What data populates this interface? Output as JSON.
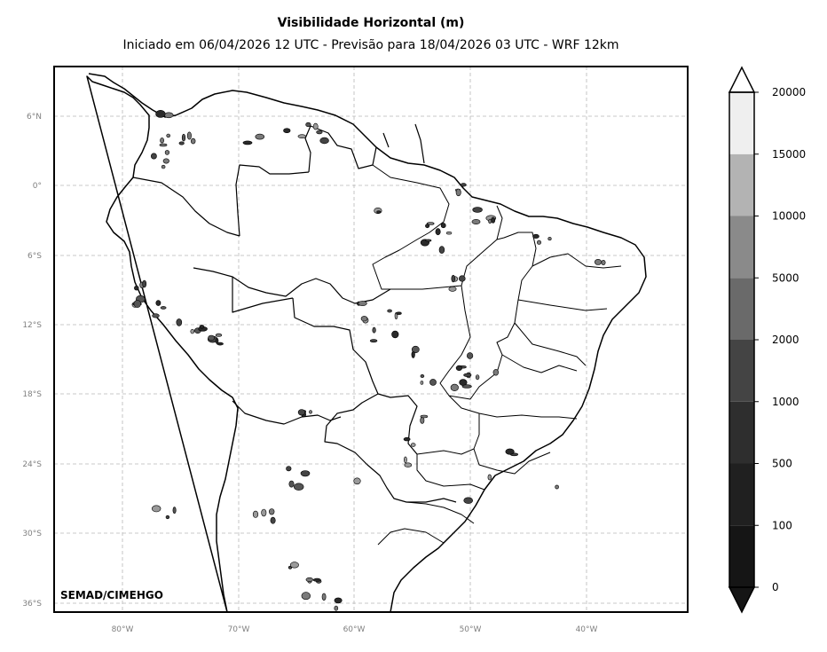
{
  "header": {
    "title": "Visibilidade Horizontal (m)",
    "subtitle": "Iniciado em 06/04/2026 12 UTC - Previsão para 18/04/2026 03 UTC - WRF 12km"
  },
  "map": {
    "credit": "SEMAD/CIMEHGO",
    "lat_labels": [
      "6°N",
      "0°",
      "6°S",
      "12°S",
      "18°S",
      "24°S",
      "30°S",
      "36°S"
    ],
    "lon_labels": [
      "80°W",
      "70°W",
      "60°W",
      "50°W",
      "40°W"
    ],
    "extent": {
      "lon": [
        -86,
        -31.5
      ],
      "lat": [
        -36.6,
        10.4
      ]
    },
    "gridlines": "dashed"
  },
  "colorbar": {
    "levels": [
      "0",
      "100",
      "500",
      "1000",
      "2000",
      "5000",
      "10000",
      "15000",
      "20000"
    ],
    "colors": [
      "#151515",
      "#202020",
      "#2e2e2e",
      "#444444",
      "#6a6a6a",
      "#8a8a8a",
      "#b3b3b3",
      "#efefef"
    ],
    "extend": "both"
  }
}
